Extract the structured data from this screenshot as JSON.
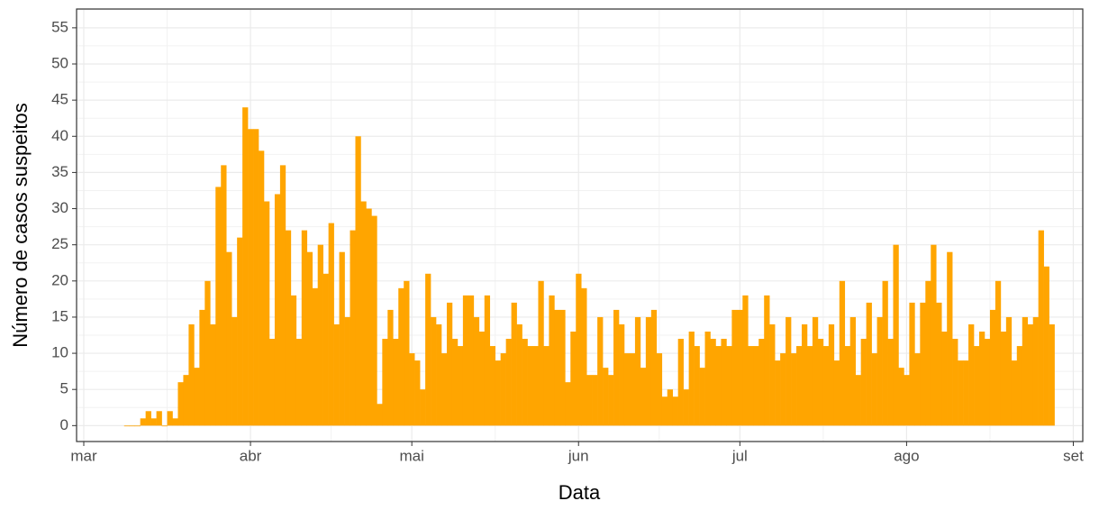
{
  "chart_data": {
    "type": "bar",
    "x_label": "Data",
    "y_label": "Número de casos suspeitos",
    "categories": [
      "mar",
      null,
      null,
      null,
      null,
      null,
      null,
      null,
      null,
      null,
      null,
      null,
      null,
      null,
      null,
      null,
      null,
      null,
      null,
      null,
      null,
      null,
      null,
      null,
      null,
      null,
      null,
      null,
      null,
      null,
      null,
      "abr",
      null,
      null,
      null,
      null,
      null,
      null,
      null,
      null,
      null,
      null,
      null,
      null,
      null,
      null,
      null,
      null,
      null,
      null,
      null,
      null,
      null,
      null,
      null,
      null,
      null,
      null,
      null,
      null,
      null,
      "mai",
      null,
      null,
      null,
      null,
      null,
      null,
      null,
      null,
      null,
      null,
      null,
      null,
      null,
      null,
      null,
      null,
      null,
      null,
      null,
      null,
      null,
      null,
      null,
      null,
      null,
      null,
      null,
      null,
      null,
      null,
      "jun",
      null,
      null,
      null,
      null,
      null,
      null,
      null,
      null,
      null,
      null,
      null,
      null,
      null,
      null,
      null,
      null,
      null,
      null,
      null,
      null,
      null,
      null,
      null,
      null,
      null,
      null,
      null,
      null,
      null,
      "jul",
      null,
      null,
      null,
      null,
      null,
      null,
      null,
      null,
      null,
      null,
      null,
      null,
      null,
      null,
      null,
      null,
      null,
      null,
      null,
      null,
      null,
      null,
      null,
      null,
      null,
      null,
      null,
      null,
      null,
      null,
      "ago",
      null,
      null,
      null,
      null,
      null,
      null,
      null,
      null,
      null,
      null,
      null,
      null,
      null,
      null,
      null,
      null,
      null,
      null,
      null,
      null,
      null,
      null,
      null,
      null,
      null,
      null,
      null,
      null,
      null,
      null,
      "set"
    ],
    "values": [
      null,
      null,
      null,
      null,
      null,
      null,
      null,
      null,
      0,
      0,
      0,
      1,
      2,
      1,
      2,
      0,
      2,
      1,
      6,
      7,
      14,
      8,
      16,
      20,
      14,
      33,
      36,
      24,
      15,
      26,
      44,
      41,
      41,
      38,
      31,
      12,
      32,
      36,
      27,
      18,
      12,
      27,
      24,
      19,
      25,
      21,
      28,
      14,
      24,
      15,
      27,
      40,
      31,
      30,
      29,
      3,
      12,
      16,
      12,
      19,
      20,
      10,
      9,
      5,
      21,
      15,
      14,
      10,
      17,
      12,
      11,
      18,
      18,
      15,
      13,
      18,
      11,
      9,
      10,
      12,
      17,
      14,
      12,
      11,
      11,
      20,
      11,
      18,
      16,
      16,
      6,
      13,
      21,
      19,
      7,
      7,
      15,
      8,
      7,
      16,
      14,
      10,
      10,
      15,
      8,
      15,
      16,
      10,
      4,
      5,
      4,
      12,
      5,
      13,
      11,
      8,
      13,
      12,
      11,
      12,
      11,
      16,
      16,
      18,
      11,
      11,
      12,
      18,
      14,
      9,
      10,
      15,
      10,
      11,
      14,
      11,
      15,
      12,
      11,
      14,
      9,
      20,
      11,
      15,
      7,
      12,
      17,
      10,
      15,
      20,
      12,
      25,
      8,
      7,
      17,
      10,
      17,
      20,
      25,
      17,
      13,
      24,
      12,
      9,
      9,
      14,
      11,
      13,
      12,
      16,
      20,
      13,
      15,
      9,
      11,
      15,
      14,
      15,
      27,
      22,
      14,
      null,
      null,
      null,
      null
    ],
    "color": "#ffa500",
    "ylim": [
      -2.2,
      57.6
    ],
    "yticks": [
      0,
      5,
      10,
      15,
      20,
      25,
      30,
      35,
      40,
      45,
      50,
      55
    ],
    "grid": true
  }
}
